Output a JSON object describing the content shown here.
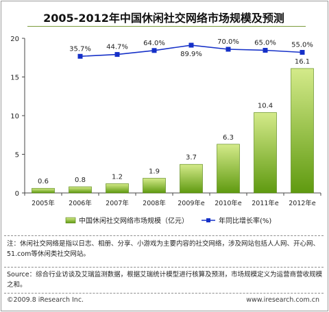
{
  "title": "2005-2012年中国休闲社交网络市场规模及预测",
  "chart_data": {
    "type": "bar+line",
    "categories": [
      "2005年",
      "2006年",
      "2007年",
      "2008年",
      "2009年e",
      "2010年e",
      "2011年e",
      "2012年e"
    ],
    "series": [
      {
        "name": "中国休闲社交网络市场规模（亿元）",
        "type": "bar",
        "values": [
          0.6,
          0.8,
          1.2,
          1.9,
          3.7,
          6.3,
          10.4,
          16.1
        ],
        "labels": [
          "0.6",
          "0.8",
          "1.2",
          "1.9",
          "3.7",
          "6.3",
          "10.4",
          "16.1"
        ]
      },
      {
        "name": "年同比增长率(%)",
        "type": "line",
        "values": [
          null,
          35.7,
          44.7,
          64.0,
          89.9,
          70.0,
          65.0,
          55.0
        ],
        "labels": [
          "",
          "35.7%",
          "44.7%",
          "64.0%",
          "89.9%",
          "70.0%",
          "65.0%",
          "55.0%"
        ]
      }
    ],
    "y_ticks": [
      "0",
      "5",
      "10",
      "15",
      "20"
    ],
    "ylim": [
      0,
      20
    ],
    "legend_position": "bottom",
    "colors": {
      "bar_top": "#d4ea8a",
      "bar_bottom": "#5f9a10",
      "bar_stroke": "#4f7f0c",
      "line": "#1530c8"
    }
  },
  "notes": {
    "note": "注：休闲社交网络是指以日志、相册、分享、小游戏为主要内容的社交网络，涉及网站包括人人网、开心网、51.com等休闲类社交网站。",
    "source": "Source：综合行业访谈及艾瑞监测数据，根据艾瑞统计模型进行核算及预测，市场规模定义为运营商营收规模之和。"
  },
  "footer": {
    "copyright": "©2009.8 iResearch Inc.",
    "website": "www.iresearch.com.cn"
  }
}
